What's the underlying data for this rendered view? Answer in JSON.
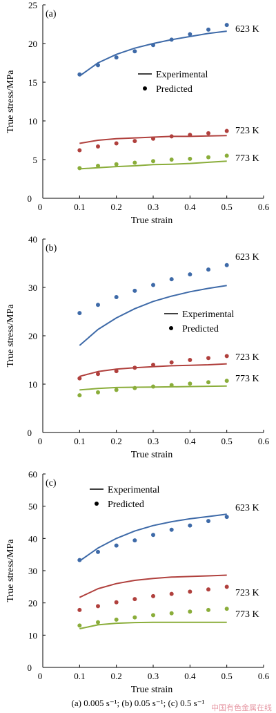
{
  "chart_data": [
    {
      "type": "line",
      "panel_label": "(a)",
      "xlabel": "True strain",
      "ylabel": "True stress/MPa",
      "xlim": [
        0,
        0.6
      ],
      "ylim": [
        0,
        25
      ],
      "xticks": [
        0,
        0.1,
        0.2,
        0.3,
        0.4,
        0.5,
        0.6
      ],
      "xtick_labels": [
        "0",
        "0.1",
        "0.2",
        "0.3",
        "0.4",
        "0.5",
        "0.6"
      ],
      "yticks": [
        0,
        5,
        10,
        15,
        20,
        25
      ],
      "ytick_labels": [
        "0",
        "5",
        "10",
        "15",
        "20",
        "25"
      ],
      "legend": {
        "position": "center-right",
        "experimental_label": "Experimental",
        "predicted_label": "Predicted"
      },
      "series": [
        {
          "name": "623 K",
          "color": "#3e6aa8",
          "experimental": {
            "x": [
              0.1,
              0.15,
              0.2,
              0.25,
              0.3,
              0.35,
              0.4,
              0.45,
              0.5
            ],
            "y": [
              15.8,
              17.5,
              18.6,
              19.4,
              20.0,
              20.5,
              20.9,
              21.3,
              21.6
            ]
          },
          "predicted": {
            "x": [
              0.1,
              0.15,
              0.2,
              0.25,
              0.3,
              0.35,
              0.4,
              0.45,
              0.5
            ],
            "y": [
              16.0,
              17.2,
              18.2,
              19.0,
              19.8,
              20.5,
              21.2,
              21.8,
              22.4
            ]
          }
        },
        {
          "name": "723 K",
          "color": "#b0403d",
          "experimental": {
            "x": [
              0.1,
              0.15,
              0.2,
              0.25,
              0.3,
              0.35,
              0.4,
              0.45,
              0.5
            ],
            "y": [
              7.1,
              7.5,
              7.7,
              7.8,
              7.9,
              8.0,
              8.0,
              8.05,
              8.1
            ]
          },
          "predicted": {
            "x": [
              0.1,
              0.15,
              0.2,
              0.25,
              0.3,
              0.35,
              0.4,
              0.45,
              0.5
            ],
            "y": [
              6.2,
              6.7,
              7.1,
              7.4,
              7.7,
              8.0,
              8.2,
              8.4,
              8.7
            ]
          }
        },
        {
          "name": "773 K",
          "color": "#8aad3a",
          "experimental": {
            "x": [
              0.1,
              0.15,
              0.2,
              0.25,
              0.3,
              0.35,
              0.4,
              0.45,
              0.5
            ],
            "y": [
              3.8,
              3.95,
              4.1,
              4.2,
              4.35,
              4.4,
              4.5,
              4.65,
              4.8
            ]
          },
          "predicted": {
            "x": [
              0.1,
              0.15,
              0.2,
              0.25,
              0.3,
              0.35,
              0.4,
              0.45,
              0.5
            ],
            "y": [
              3.9,
              4.2,
              4.4,
              4.6,
              4.8,
              5.0,
              5.1,
              5.3,
              5.5
            ]
          }
        }
      ]
    },
    {
      "type": "line",
      "panel_label": "(b)",
      "xlabel": "True strain",
      "ylabel": "True stress/MPa",
      "xlim": [
        0,
        0.6
      ],
      "ylim": [
        0,
        40
      ],
      "xticks": [
        0,
        0.1,
        0.2,
        0.3,
        0.4,
        0.5,
        0.6
      ],
      "xtick_labels": [
        "0",
        "0.1",
        "0.2",
        "0.3",
        "0.4",
        "0.5",
        "0.6"
      ],
      "yticks": [
        0,
        10,
        20,
        30,
        40
      ],
      "ytick_labels": [
        "0",
        "10",
        "20",
        "30",
        "40"
      ],
      "legend": {
        "position": "center-right",
        "experimental_label": "Experimental",
        "predicted_label": "Predicted"
      },
      "series": [
        {
          "name": "623 K",
          "color": "#3e6aa8",
          "experimental": {
            "x": [
              0.1,
              0.15,
              0.2,
              0.25,
              0.3,
              0.35,
              0.4,
              0.45,
              0.5
            ],
            "y": [
              18.0,
              21.3,
              23.7,
              25.6,
              27.1,
              28.2,
              29.1,
              29.8,
              30.4
            ]
          },
          "predicted": {
            "x": [
              0.1,
              0.15,
              0.2,
              0.25,
              0.3,
              0.35,
              0.4,
              0.45,
              0.5
            ],
            "y": [
              24.7,
              26.4,
              28.0,
              29.3,
              30.5,
              31.7,
              32.7,
              33.7,
              34.6
            ]
          }
        },
        {
          "name": "723 K",
          "color": "#b0403d",
          "experimental": {
            "x": [
              0.1,
              0.15,
              0.2,
              0.25,
              0.3,
              0.35,
              0.4,
              0.45,
              0.5
            ],
            "y": [
              11.6,
              12.6,
              13.1,
              13.4,
              13.6,
              13.8,
              13.9,
              14.0,
              14.2
            ]
          },
          "predicted": {
            "x": [
              0.1,
              0.15,
              0.2,
              0.25,
              0.3,
              0.35,
              0.4,
              0.45,
              0.5
            ],
            "y": [
              11.2,
              12.1,
              12.7,
              13.4,
              14.0,
              14.5,
              15.0,
              15.4,
              15.8
            ]
          }
        },
        {
          "name": "773 K",
          "color": "#8aad3a",
          "experimental": {
            "x": [
              0.1,
              0.15,
              0.2,
              0.25,
              0.3,
              0.35,
              0.4,
              0.45,
              0.5
            ],
            "y": [
              8.8,
              9.1,
              9.3,
              9.35,
              9.4,
              9.45,
              9.5,
              9.55,
              9.6
            ]
          },
          "predicted": {
            "x": [
              0.1,
              0.15,
              0.2,
              0.25,
              0.3,
              0.35,
              0.4,
              0.45,
              0.5
            ],
            "y": [
              7.7,
              8.3,
              8.8,
              9.2,
              9.5,
              9.8,
              10.1,
              10.4,
              10.7
            ]
          }
        }
      ]
    },
    {
      "type": "line",
      "panel_label": "(c)",
      "xlabel": "True strain",
      "ylabel": "True stress/MPa",
      "xlim": [
        0,
        0.6
      ],
      "ylim": [
        0,
        60
      ],
      "xticks": [
        0,
        0.1,
        0.2,
        0.3,
        0.4,
        0.5,
        0.6
      ],
      "xtick_labels": [
        "0",
        "0.1",
        "0.2",
        "0.3",
        "0.4",
        "0.5",
        "0.6"
      ],
      "yticks": [
        0,
        10,
        20,
        30,
        40,
        50,
        60
      ],
      "ytick_labels": [
        "0",
        "10",
        "20",
        "30",
        "40",
        "50",
        "60"
      ],
      "legend": {
        "position": "top-left",
        "experimental_label": "Experimental",
        "predicted_label": "Predicted"
      },
      "series": [
        {
          "name": "623 K",
          "color": "#3e6aa8",
          "experimental": {
            "x": [
              0.1,
              0.15,
              0.2,
              0.25,
              0.3,
              0.35,
              0.4,
              0.45,
              0.5
            ],
            "y": [
              33.0,
              37.0,
              40.0,
              42.3,
              44.0,
              45.2,
              46.1,
              46.8,
              47.5
            ]
          },
          "predicted": {
            "x": [
              0.1,
              0.15,
              0.2,
              0.25,
              0.3,
              0.35,
              0.4,
              0.45,
              0.5
            ],
            "y": [
              33.3,
              35.8,
              37.8,
              39.4,
              41.1,
              42.7,
              44.0,
              45.4,
              46.7
            ]
          }
        },
        {
          "name": "723 K",
          "color": "#b0403d",
          "experimental": {
            "x": [
              0.1,
              0.15,
              0.2,
              0.25,
              0.3,
              0.35,
              0.4,
              0.45,
              0.5
            ],
            "y": [
              21.7,
              24.4,
              26.0,
              27.0,
              27.6,
              28.0,
              28.2,
              28.4,
              28.6
            ]
          },
          "predicted": {
            "x": [
              0.1,
              0.15,
              0.2,
              0.25,
              0.3,
              0.35,
              0.4,
              0.45,
              0.5
            ],
            "y": [
              17.8,
              19.0,
              20.2,
              21.2,
              22.1,
              22.8,
              23.5,
              24.2,
              25.0
            ]
          }
        },
        {
          "name": "773 K",
          "color": "#8aad3a",
          "experimental": {
            "x": [
              0.1,
              0.15,
              0.2,
              0.25,
              0.3,
              0.35,
              0.4,
              0.45,
              0.5
            ],
            "y": [
              12.0,
              13.2,
              13.7,
              13.9,
              14.0,
              14.0,
              14.0,
              14.0,
              14.0
            ]
          },
          "predicted": {
            "x": [
              0.1,
              0.15,
              0.2,
              0.25,
              0.3,
              0.35,
              0.4,
              0.45,
              0.5
            ],
            "y": [
              13.0,
              14.0,
              14.8,
              15.5,
              16.2,
              16.8,
              17.3,
              17.8,
              18.2
            ]
          }
        }
      ]
    }
  ],
  "caption": "(a) 0.005 s⁻¹; (b) 0.05 s⁻¹; (c) 0.5 s⁻¹",
  "watermark": "中国有色金属在线"
}
